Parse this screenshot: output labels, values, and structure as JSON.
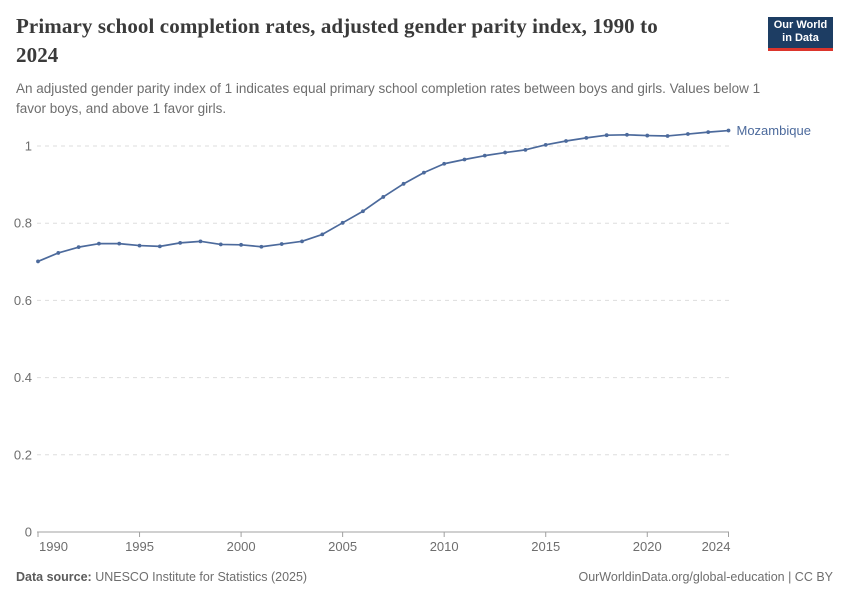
{
  "header": {
    "title": "Primary school completion rates, adjusted gender parity index, 1990 to 2024",
    "subtitle": "An adjusted gender parity index of 1 indicates equal primary school completion rates between boys and girls. Values below 1 favor boys, and above 1 favor girls."
  },
  "logo": {
    "line1": "Our World",
    "line2": "in Data",
    "bg_color": "#1d3d63",
    "accent_color": "#dc352c"
  },
  "chart_data": {
    "type": "line",
    "title": "Primary school completion rates, adjusted gender parity index, 1990 to 2024",
    "x": [
      1990,
      1991,
      1992,
      1993,
      1994,
      1995,
      1996,
      1997,
      1998,
      1999,
      2000,
      2001,
      2002,
      2003,
      2004,
      2005,
      2006,
      2007,
      2008,
      2009,
      2010,
      2011,
      2012,
      2013,
      2014,
      2015,
      2016,
      2017,
      2018,
      2019,
      2020,
      2021,
      2022,
      2023,
      2024
    ],
    "series": [
      {
        "name": "Mozambique",
        "color": "#4c6a9c",
        "values": [
          0.701,
          0.723,
          0.738,
          0.747,
          0.747,
          0.742,
          0.74,
          0.749,
          0.753,
          0.745,
          0.744,
          0.739,
          0.746,
          0.753,
          0.771,
          0.801,
          0.831,
          0.868,
          0.902,
          0.931,
          0.954,
          0.965,
          0.975,
          0.983,
          0.99,
          1.003,
          1.013,
          1.021,
          1.028,
          1.029,
          1.027,
          1.026,
          1.031,
          1.036,
          1.04
        ]
      }
    ],
    "xlim": [
      1990,
      2024
    ],
    "ylim": [
      0,
      1.05
    ],
    "xticks": [
      1990,
      1995,
      2000,
      2005,
      2010,
      2015,
      2020,
      2024
    ],
    "xtick_labels": [
      "1990",
      "1995",
      "2000",
      "2005",
      "2010",
      "2015",
      "2020",
      "2024"
    ],
    "yticks": [
      0,
      0.2,
      0.4,
      0.6,
      0.8,
      1
    ],
    "ytick_labels": [
      "0",
      "0.2",
      "0.4",
      "0.6",
      "0.8",
      "1"
    ],
    "grid": "horizontal-dashed",
    "legend_position": "end-of-line",
    "colors": {
      "line": "#4c6a9c",
      "grid": "#dddddd",
      "axis": "#a0a0a0",
      "tick_text": "#6e6e6e"
    }
  },
  "footer": {
    "source_label": "Data source:",
    "source_text": " UNESCO Institute for Statistics (2025)",
    "right_text": "OurWorldinData.org/global-education | CC BY"
  }
}
